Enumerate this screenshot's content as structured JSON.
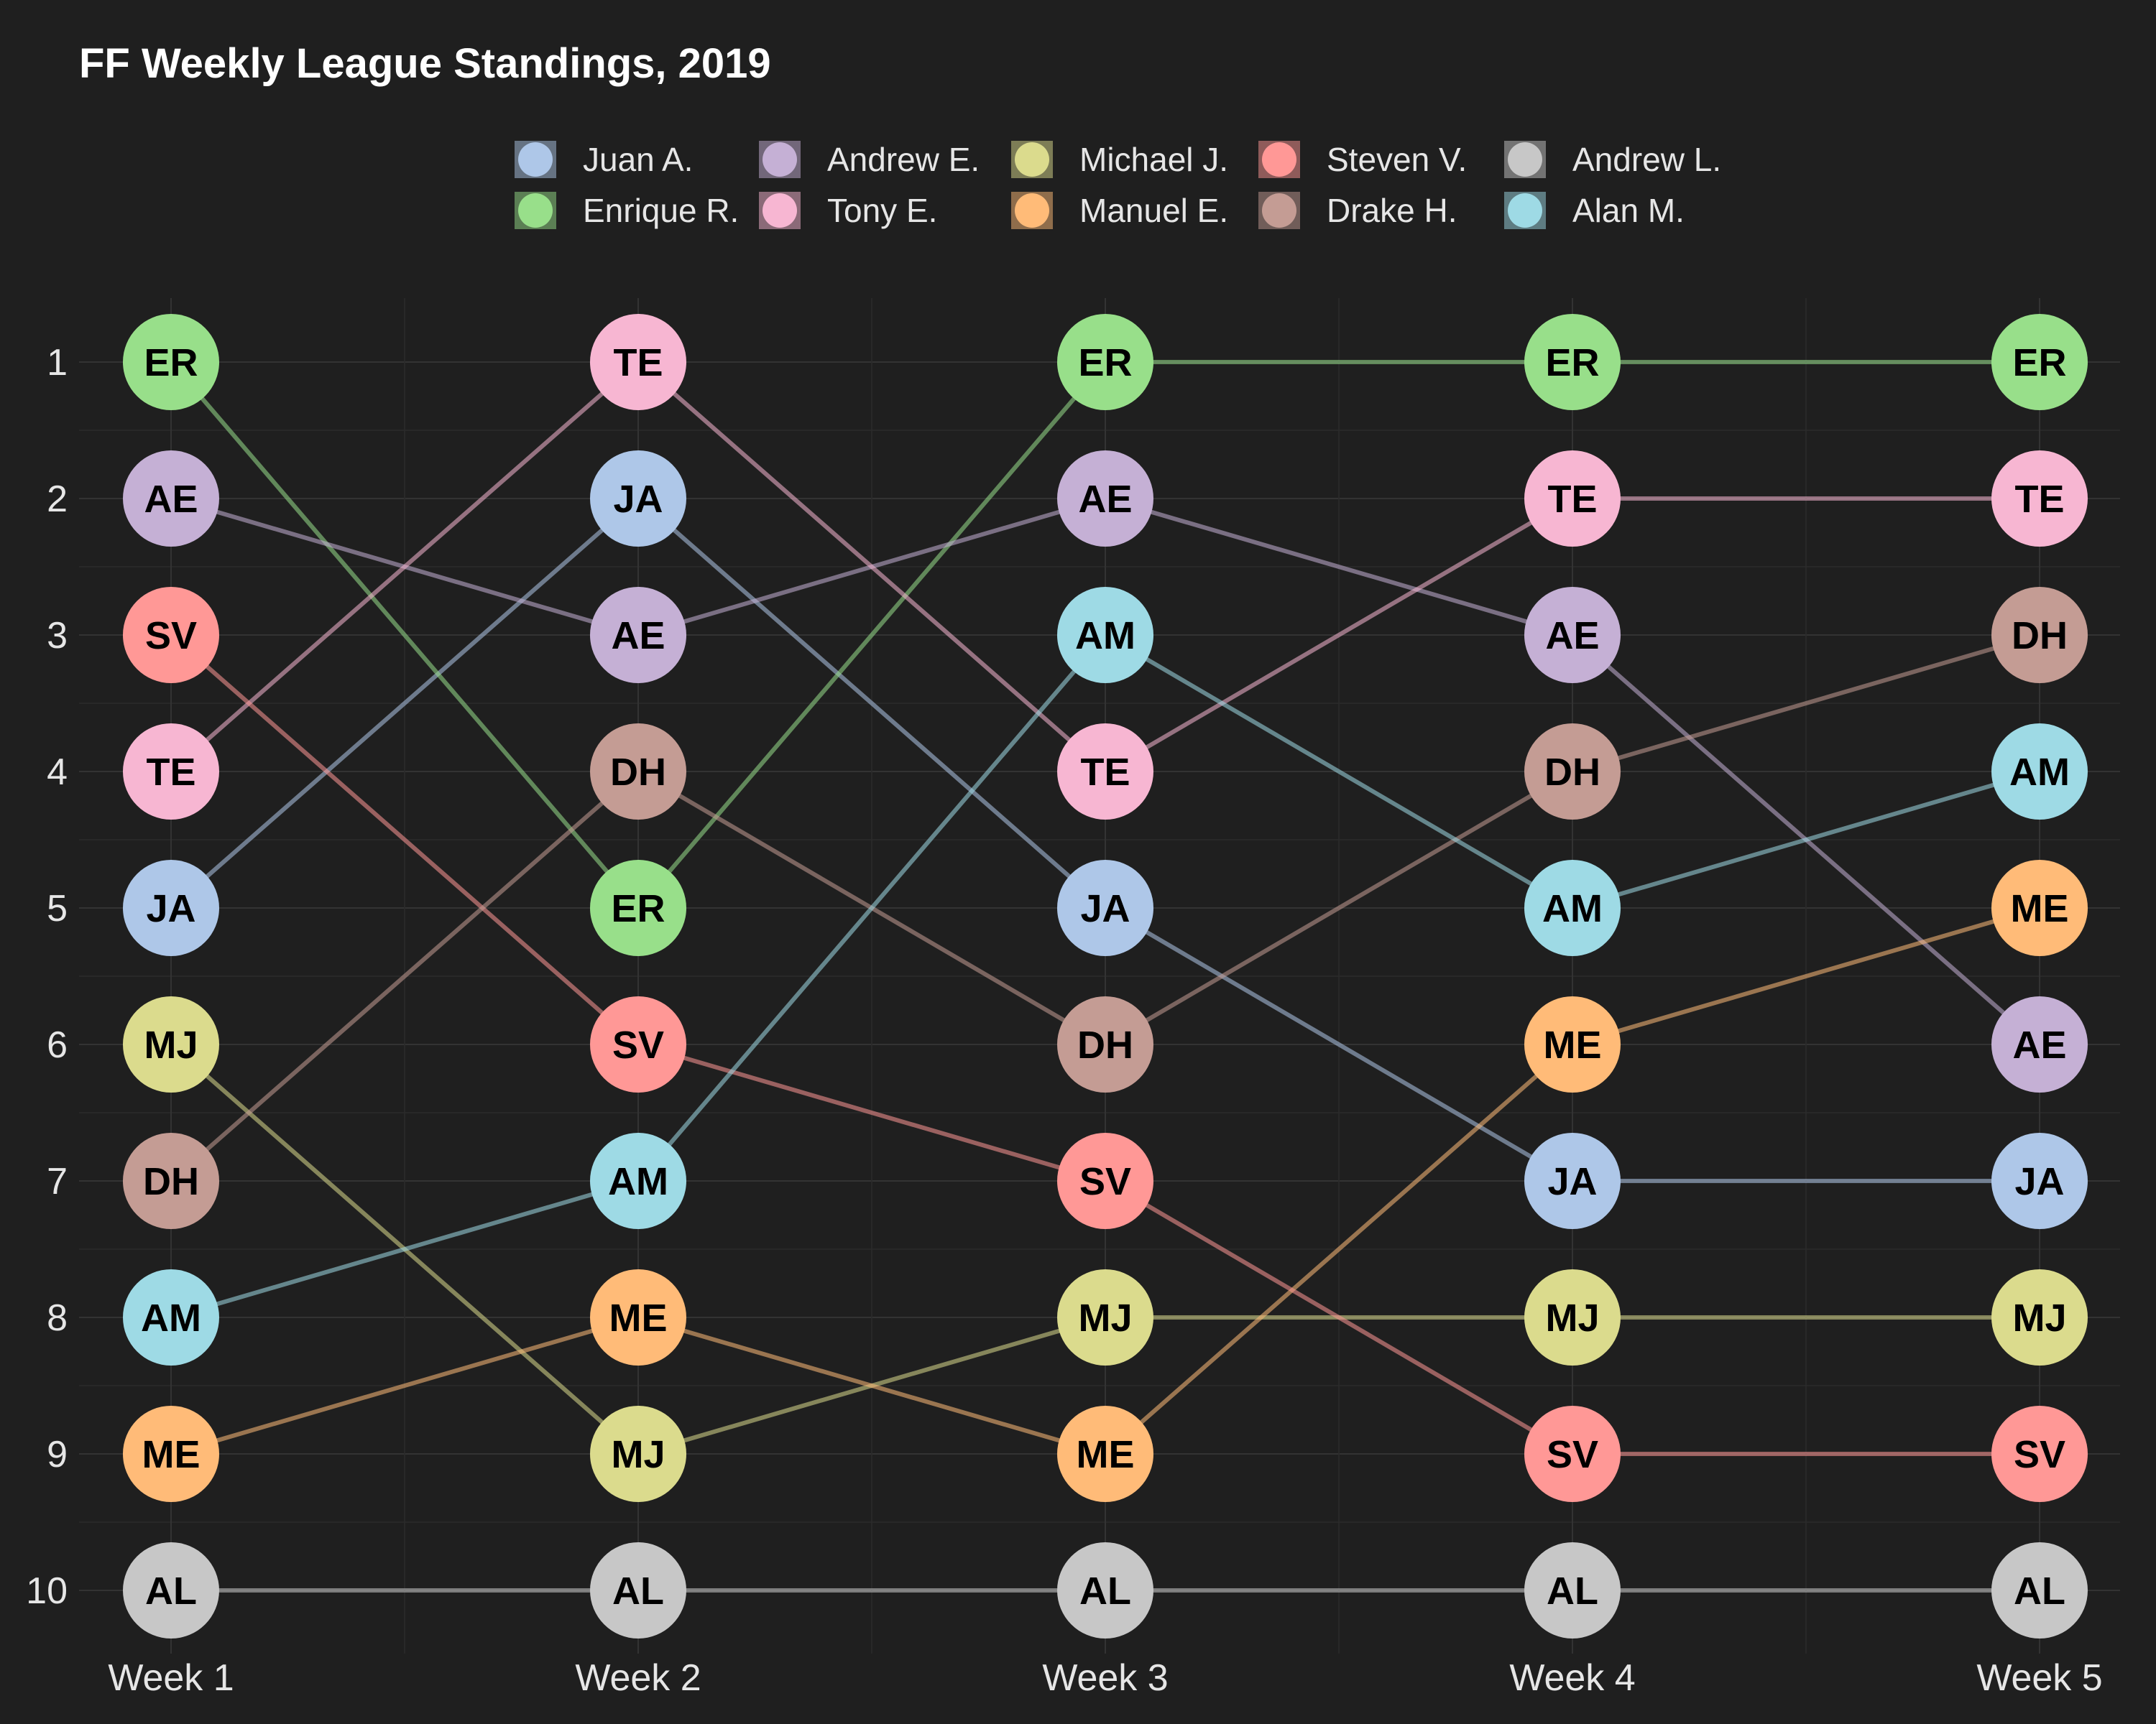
{
  "chart_data": {
    "type": "line",
    "title": "FF Weekly League Standings, 2019",
    "xlabel": "",
    "ylabel": "",
    "categories": [
      "Week 1",
      "Week 2",
      "Week 3",
      "Week 4",
      "Week 5"
    ],
    "y_ticks": [
      1,
      2,
      3,
      4,
      5,
      6,
      7,
      8,
      9,
      10
    ],
    "ylim": [
      1,
      10
    ],
    "y_reversed": true,
    "grid": true,
    "legend_position": "top",
    "series": [
      {
        "name": "Juan A.",
        "abbr": "JA",
        "color": "#aec7e8",
        "values": [
          5,
          2,
          5,
          7,
          7
        ]
      },
      {
        "name": "Enrique R.",
        "abbr": "ER",
        "color": "#98df8a",
        "values": [
          1,
          5,
          1,
          1,
          1
        ]
      },
      {
        "name": "Andrew E.",
        "abbr": "AE",
        "color": "#c5b0d5",
        "values": [
          2,
          3,
          2,
          3,
          6
        ]
      },
      {
        "name": "Tony E.",
        "abbr": "TE",
        "color": "#f7b6d2",
        "values": [
          4,
          1,
          4,
          2,
          2
        ]
      },
      {
        "name": "Michael J.",
        "abbr": "MJ",
        "color": "#dbdb8d",
        "values": [
          6,
          9,
          8,
          8,
          8
        ]
      },
      {
        "name": "Manuel E.",
        "abbr": "ME",
        "color": "#ffbb78",
        "values": [
          9,
          8,
          9,
          6,
          5
        ]
      },
      {
        "name": "Steven V.",
        "abbr": "SV",
        "color": "#ff9896",
        "values": [
          3,
          6,
          7,
          9,
          9
        ]
      },
      {
        "name": "Drake H.",
        "abbr": "DH",
        "color": "#c49c94",
        "values": [
          7,
          4,
          6,
          4,
          3
        ]
      },
      {
        "name": "Andrew L.",
        "abbr": "AL",
        "color": "#c7c7c7",
        "values": [
          10,
          10,
          10,
          10,
          10
        ]
      },
      {
        "name": "Alan M.",
        "abbr": "AM",
        "color": "#9edae5",
        "values": [
          8,
          7,
          3,
          5,
          4
        ]
      }
    ]
  }
}
